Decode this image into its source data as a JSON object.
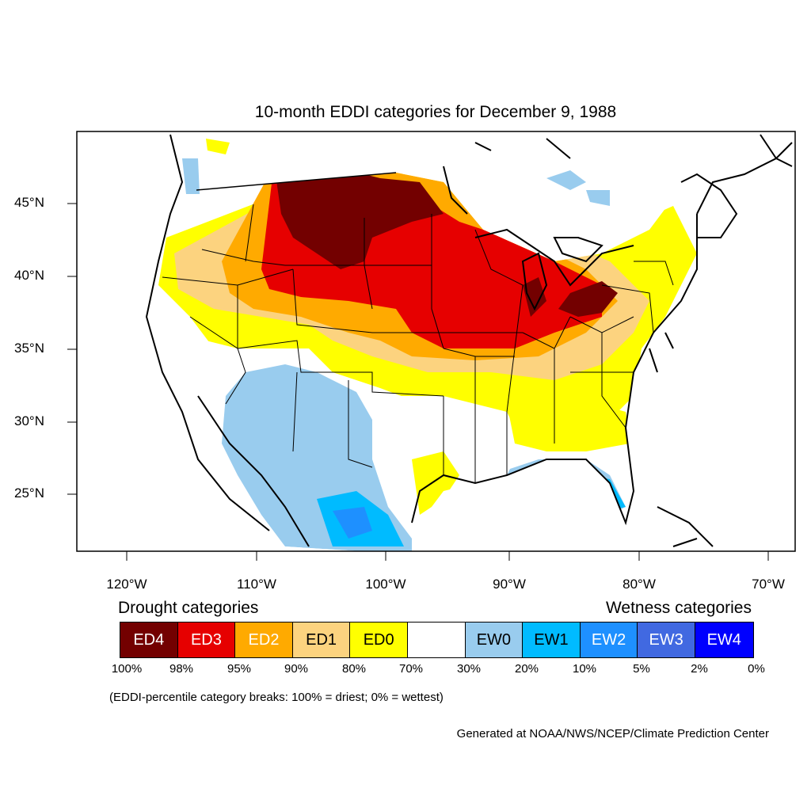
{
  "title": "10-month EDDI categories for December 9, 1988",
  "lat_labels": [
    "45°N",
    "40°N",
    "35°N",
    "30°N",
    "25°N"
  ],
  "lon_labels": [
    "120°W",
    "110°W",
    "100°W",
    "90°W",
    "80°W",
    "70°W"
  ],
  "legend": {
    "drought_heading": "Drought categories",
    "wetness_heading": "Wetness categories",
    "categories": [
      {
        "label": "ED4",
        "color": "#730000",
        "text_color": "#ffffff"
      },
      {
        "label": "ED3",
        "color": "#e60000",
        "text_color": "#ffffff"
      },
      {
        "label": "ED2",
        "color": "#ffaa00",
        "text_color": "#ffffff"
      },
      {
        "label": "ED1",
        "color": "#fcd37f",
        "text_color": "#000000"
      },
      {
        "label": "ED0",
        "color": "#ffff00",
        "text_color": "#000000"
      },
      {
        "label": "",
        "color": "#ffffff",
        "text_color": "#000000"
      },
      {
        "label": "EW0",
        "color": "#99ccee",
        "text_color": "#000000"
      },
      {
        "label": "EW1",
        "color": "#00bbff",
        "text_color": "#000000"
      },
      {
        "label": "EW2",
        "color": "#1e90ff",
        "text_color": "#ffffff"
      },
      {
        "label": "EW3",
        "color": "#4169e1",
        "text_color": "#ffffff"
      },
      {
        "label": "EW4",
        "color": "#0000ff",
        "text_color": "#ffffff"
      }
    ],
    "breaks": [
      "100%",
      "98%",
      "95%",
      "90%",
      "80%",
      "70%",
      "30%",
      "20%",
      "10%",
      "5%",
      "2%",
      "0%"
    ]
  },
  "note": "(EDDI-percentile category breaks: 100% = driest; 0% = wettest)",
  "credit": "Generated at NOAA/NWS/NCEP/Climate Prediction Center"
}
